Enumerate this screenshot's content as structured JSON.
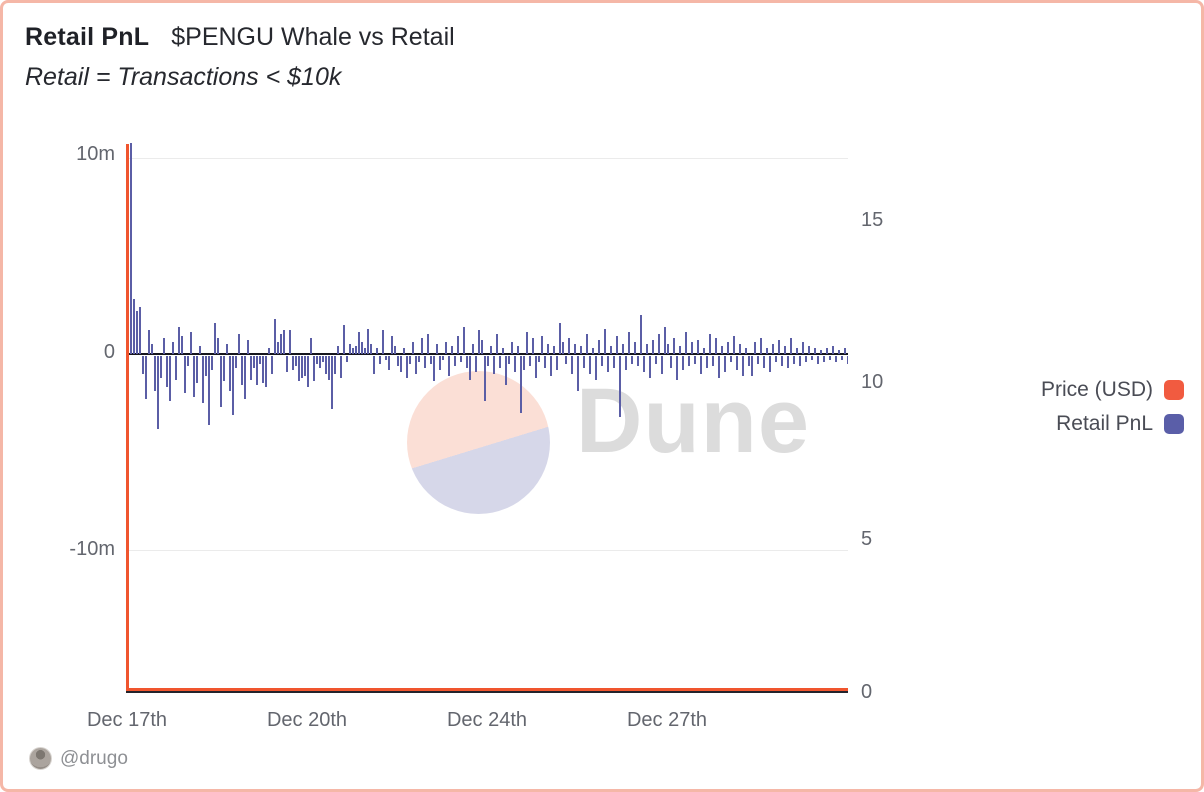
{
  "header": {
    "title_bold": "Retail PnL",
    "title_rest": "$PENGU Whale vs Retail",
    "subtitle": "Retail = Transactions < $10k"
  },
  "colors": {
    "price_line": "#F0552E",
    "retail_bar": "#5B5EA6",
    "card_border": "#F5B7A7",
    "watermark_pink": "#FBDFD6",
    "watermark_lavender": "#D6D7E9",
    "axis_text": "#63666E",
    "zero_line": "#16161E"
  },
  "left_axis": {
    "ticks": [
      "10m",
      "0",
      "-10m"
    ]
  },
  "right_axis": {
    "ticks": [
      "15",
      "10",
      "5",
      "0"
    ]
  },
  "x_axis": {
    "ticks": [
      "Dec 17th",
      "Dec 20th",
      "Dec 24th",
      "Dec 27th"
    ]
  },
  "legend": {
    "items": [
      {
        "label": "Price (USD)",
        "color": "#F15B40"
      },
      {
        "label": "Retail PnL",
        "color": "#5A5EA8"
      }
    ]
  },
  "watermark": {
    "text": "Dune"
  },
  "footer": {
    "handle": "@drugo"
  },
  "chart_data": {
    "type": "combo",
    "title": "Retail PnL — $PENGU Whale vs Retail",
    "subtitle": "Retail = Transactions < $10k",
    "x_start": "Dec 17th",
    "x_end": "Dec 29th",
    "x_tick_labels": [
      "Dec 17th",
      "Dec 20th",
      "Dec 24th",
      "Dec 27th"
    ],
    "left_axis": {
      "title": "Retail PnL (USD)",
      "tick_labels": [
        "10m",
        "0",
        "-10m"
      ],
      "ylim_millions": [
        -17.2,
        10.8
      ],
      "grid": true
    },
    "right_axis": {
      "title": "Price (USD)",
      "tick_labels": [
        "15",
        "10",
        "5",
        "0"
      ],
      "ylim": [
        0,
        17.5
      ],
      "grid": false
    },
    "legend_position": "right",
    "series": [
      {
        "name": "Price (USD)",
        "type": "line",
        "axis": "right",
        "color": "#F0552E",
        "points": [
          {
            "x": "Dec 17th 00:00",
            "y": 17.4
          },
          {
            "x": "Dec 17th 01:00",
            "y": 0.04
          },
          {
            "x": "Dec 29th",
            "y": 0.04
          }
        ]
      },
      {
        "name": "Retail PnL",
        "type": "bar",
        "axis": "left",
        "color": "#5B5EA6",
        "unit": "USD millions",
        "values_m": [
          10.8,
          2.8,
          2.2,
          2.4,
          -0.9,
          -2.2,
          1.2,
          0.5,
          -1.8,
          -3.7,
          -1.1,
          0.8,
          -1.6,
          -2.3,
          0.6,
          -1.2,
          1.4,
          0.9,
          -1.9,
          -0.5,
          1.1,
          -2.1,
          -1.4,
          0.4,
          -2.4,
          -1.0,
          -3.5,
          -0.7,
          1.6,
          0.8,
          -2.6,
          -1.3,
          0.5,
          -1.8,
          -3.0,
          -0.6,
          1.0,
          -1.5,
          -2.2,
          0.7,
          -1.2,
          -0.6,
          -1.5,
          -0.4,
          -1.4,
          -1.6,
          0.3,
          -0.9,
          1.8,
          0.6,
          1.0,
          1.2,
          -0.8,
          1.2,
          -0.7,
          -0.5,
          -1.3,
          -1.1,
          -1.0,
          -1.6,
          0.8,
          -1.3,
          -0.4,
          -0.6,
          -0.3,
          -0.9,
          -1.2,
          -2.7,
          -0.9,
          0.4,
          -1.1,
          1.5,
          -0.3,
          0.5,
          0.3,
          0.4,
          1.1,
          0.6,
          0.3,
          1.3,
          0.5,
          -0.9,
          0.3,
          -0.4,
          1.2,
          -0.2,
          -0.7,
          0.9,
          0.4,
          -0.5,
          -0.8,
          0.3,
          -1.1,
          -0.4,
          0.6,
          -0.9,
          -0.3,
          0.8,
          -0.6,
          1.0,
          -0.4,
          -1.3,
          0.5,
          -0.7,
          -0.2,
          0.6,
          -1.0,
          0.4,
          -0.5,
          0.9,
          -0.3,
          1.4,
          -0.6,
          -1.2,
          0.5,
          -0.8,
          1.2,
          0.7,
          -2.3,
          -0.5,
          0.4,
          -0.9,
          1.0,
          -0.6,
          0.3,
          -1.5,
          -0.4,
          0.6,
          -0.8,
          0.4,
          -2.9,
          -0.7,
          1.1,
          -0.5,
          0.8,
          -1.1,
          -0.3,
          0.9,
          -0.6,
          0.5,
          -1.0,
          0.4,
          -0.7,
          1.6,
          0.6,
          -0.4,
          0.8,
          -0.9,
          0.5,
          -1.8,
          0.4,
          -0.6,
          1.0,
          -0.9,
          0.3,
          -1.2,
          0.7,
          -0.5,
          1.3,
          -0.8,
          0.4,
          -0.6,
          0.9,
          -3.1,
          0.5,
          -0.7,
          1.1,
          -0.4,
          0.6,
          -0.5,
          2.0,
          -0.8,
          0.5,
          -1.1,
          0.7,
          -0.4,
          1.0,
          -0.9,
          1.4,
          0.5,
          -0.6,
          0.8,
          -1.2,
          0.4,
          -0.7,
          1.1,
          -0.5,
          0.6,
          -0.4,
          0.7,
          -0.9,
          0.3,
          -0.6,
          1.0,
          -0.5,
          0.8,
          -1.1,
          0.4,
          -0.8,
          0.6,
          -0.3,
          0.9,
          -0.7,
          0.5,
          -1.0,
          0.3,
          -0.5,
          -1.0,
          0.6,
          -0.4,
          0.8,
          -0.6,
          0.3,
          -0.8,
          0.5,
          -0.3,
          0.7,
          -0.5,
          0.4,
          -0.6,
          0.8,
          -0.4,
          0.3,
          -0.5,
          0.6,
          -0.3,
          0.4,
          -0.2,
          0.3,
          -0.4,
          0.2,
          -0.3,
          0.3,
          -0.2,
          0.4,
          -0.3,
          0.2,
          -0.2,
          0.3,
          -0.4
        ]
      }
    ]
  }
}
